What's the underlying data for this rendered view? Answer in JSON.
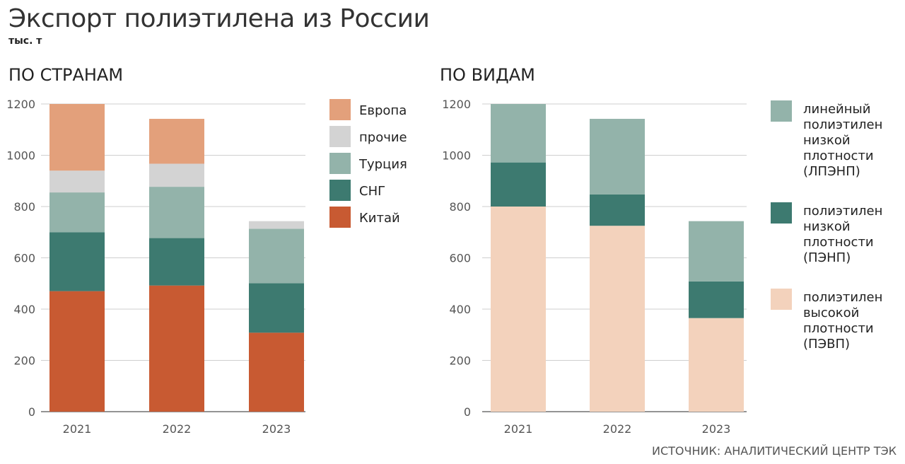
{
  "title": "Экспорт полиэтилена из России",
  "units": "тыс. т",
  "source": "ИСТОЧНИК: АНАЛИТИЧЕСКИЙ ЦЕНТР ТЭК",
  "colors": {
    "europe": "#e3a07b",
    "other": "#d3d3d3",
    "turkey": "#93b3aa",
    "cis": "#3d7a70",
    "china": "#c85a32",
    "lldpe": "#93b3aa",
    "ldpe": "#3d7a70",
    "hdpe": "#f3d2bc",
    "grid": "#cfcfcf",
    "axis": "#555555"
  },
  "chart_data": [
    {
      "id": "countries",
      "type": "bar",
      "stacked": true,
      "title": "ПО СТРАНАМ",
      "categories": [
        "2021",
        "2022",
        "2023"
      ],
      "ylim": [
        0,
        1200
      ],
      "yticks": [
        0,
        200,
        400,
        600,
        800,
        1000,
        1200
      ],
      "grid": true,
      "legend_position": "right",
      "series": [
        {
          "name": "Китай",
          "color_key": "china",
          "values": [
            470,
            492,
            308
          ]
        },
        {
          "name": "СНГ",
          "color_key": "cis",
          "values": [
            230,
            185,
            193
          ]
        },
        {
          "name": "Турция",
          "color_key": "turkey",
          "values": [
            155,
            200,
            212
          ]
        },
        {
          "name": "прочие",
          "color_key": "other",
          "values": [
            85,
            90,
            30
          ]
        },
        {
          "name": "Европа",
          "color_key": "europe",
          "values": [
            260,
            175,
            0
          ]
        }
      ],
      "legend_order": [
        "Европа",
        "прочие",
        "Турция",
        "СНГ",
        "Китай"
      ]
    },
    {
      "id": "types",
      "type": "bar",
      "stacked": true,
      "title": "ПО ВИДАМ",
      "categories": [
        "2021",
        "2022",
        "2023"
      ],
      "ylim": [
        0,
        1200
      ],
      "yticks": [
        0,
        200,
        400,
        600,
        800,
        1000,
        1200
      ],
      "grid": true,
      "legend_position": "right",
      "series": [
        {
          "name": "полиэтилен высокой плотности (ПЭВП)",
          "lines": [
            "полиэтилен",
            "высокой",
            "плотности",
            "(ПЭВП)"
          ],
          "color_key": "hdpe",
          "values": [
            800,
            725,
            365
          ]
        },
        {
          "name": "полиэтилен низкой плотности (ПЭНП)",
          "lines": [
            "полиэтилен",
            "низкой",
            "плотности",
            "(ПЭНП)"
          ],
          "color_key": "ldpe",
          "values": [
            172,
            122,
            143
          ]
        },
        {
          "name": "линейный полиэтилен низкой плотности (ЛПЭНП)",
          "lines": [
            "линейный",
            "полиэтилен",
            "низкой",
            "плотности",
            "(ЛПЭНП)"
          ],
          "color_key": "lldpe",
          "values": [
            228,
            295,
            235
          ]
        }
      ],
      "legend_order": [
        "линейный полиэтилен низкой плотности (ЛПЭНП)",
        "полиэтилен низкой плотности (ПЭНП)",
        "полиэтилен высокой плотности (ПЭВП)"
      ]
    }
  ]
}
